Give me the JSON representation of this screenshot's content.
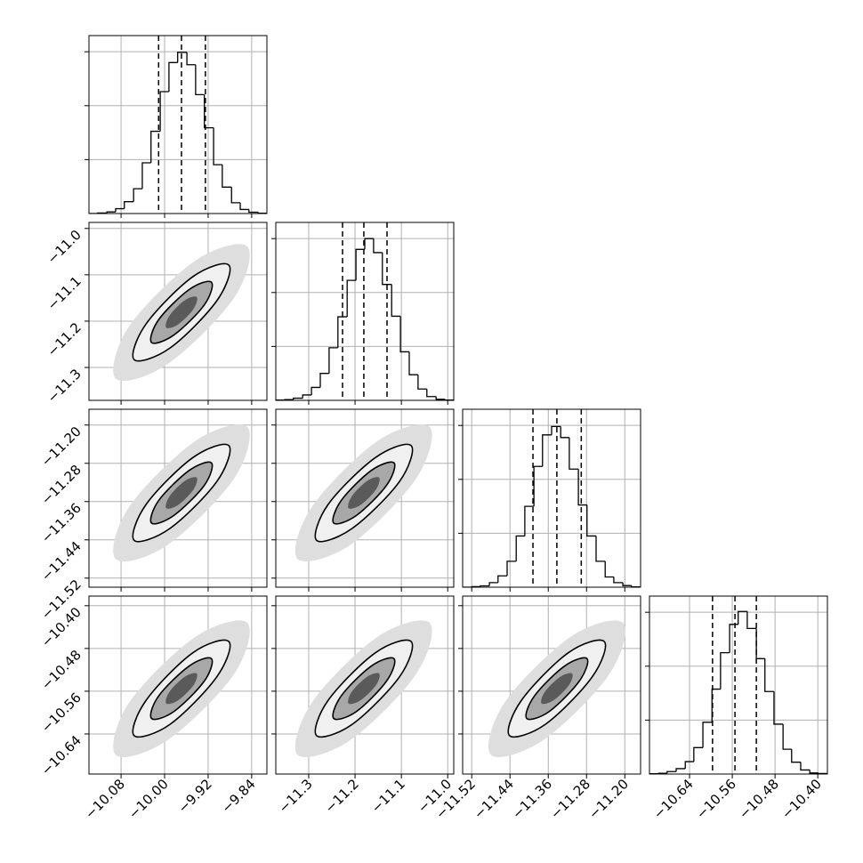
{
  "chart_data": {
    "type": "corner",
    "grid": true,
    "color": "#000000",
    "contour_colors": [
      "#dedede",
      "#f0f0f0",
      "#a8a8a8",
      "#5a5a5a"
    ],
    "parameters": [
      {
        "lim": [
          -10.139,
          -9.812
        ],
        "ticks": [
          {
            "value": -10.08,
            "label": "−10.08"
          },
          {
            "value": -10.0,
            "label": "−10.00"
          },
          {
            "value": -9.92,
            "label": "−9.92"
          },
          {
            "value": -9.84,
            "label": "−9.84"
          }
        ],
        "quantiles": [
          -10.011,
          -9.969,
          -9.925
        ],
        "hist": {
          "bins": [
            -10.139,
            -10.123,
            -10.106,
            -10.09,
            -10.074,
            -10.057,
            -10.041,
            -10.025,
            -10.008,
            -9.992,
            -9.976,
            -9.959,
            -9.943,
            -9.927,
            -9.91,
            -9.894,
            -9.877,
            -9.861,
            -9.845,
            -9.828,
            -9.812
          ],
          "counts": [
            0,
            2,
            6,
            18,
            44,
            92,
            188,
            305,
            452,
            560,
            598,
            552,
            441,
            318,
            181,
            98,
            40,
            15,
            5,
            1
          ],
          "ylim": [
            0,
            660
          ],
          "yticks": [
            200,
            400,
            600
          ]
        }
      },
      {
        "lim": [
          -11.371,
          -10.987
        ],
        "ticks": [
          {
            "value": -11.3,
            "label": "−11.3"
          },
          {
            "value": -11.2,
            "label": "−11.2"
          },
          {
            "value": -11.1,
            "label": "−11.1"
          },
          {
            "value": -11.0,
            "label": "−11.0"
          }
        ],
        "quantiles": [
          -11.227,
          -11.181,
          -11.131
        ],
        "hist": {
          "bins": [
            -11.371,
            -11.352,
            -11.333,
            -11.313,
            -11.294,
            -11.275,
            -11.256,
            -11.237,
            -11.217,
            -11.198,
            -11.179,
            -11.16,
            -11.141,
            -11.121,
            -11.102,
            -11.083,
            -11.064,
            -11.045,
            -11.025,
            -11.006,
            -10.987
          ],
          "counts": [
            1,
            3,
            8,
            20,
            48,
            100,
            195,
            310,
            445,
            560,
            600,
            548,
            430,
            312,
            180,
            95,
            42,
            14,
            4,
            1
          ],
          "ylim": [
            0,
            660
          ],
          "yticks": [
            200,
            400,
            600
          ]
        }
      },
      {
        "lim": [
          -11.539,
          -11.167
        ],
        "ticks": [
          {
            "value": -11.52,
            "label": "−11.52"
          },
          {
            "value": -11.44,
            "label": "−11.44"
          },
          {
            "value": -11.36,
            "label": "−11.36"
          },
          {
            "value": -11.28,
            "label": "−11.28"
          },
          {
            "value": -11.2,
            "label": "−11.20"
          }
        ],
        "quantiles": [
          -11.392,
          -11.342,
          -11.291
        ],
        "hist": {
          "bins": [
            -11.539,
            -11.52,
            -11.502,
            -11.483,
            -11.465,
            -11.446,
            -11.427,
            -11.409,
            -11.39,
            -11.372,
            -11.353,
            -11.334,
            -11.316,
            -11.297,
            -11.279,
            -11.26,
            -11.241,
            -11.223,
            -11.204,
            -11.186,
            -11.167
          ],
          "counts": [
            0,
            2,
            5,
            17,
            42,
            96,
            190,
            300,
            448,
            565,
            596,
            555,
            438,
            305,
            190,
            96,
            38,
            17,
            6,
            1
          ],
          "ylim": [
            0,
            660
          ],
          "yticks": [
            200,
            400,
            600
          ]
        }
      },
      {
        "lim": [
          -10.715,
          -10.382
        ],
        "ticks": [
          {
            "value": -10.64,
            "label": "−10.64"
          },
          {
            "value": -10.56,
            "label": "−10.56"
          },
          {
            "value": -10.48,
            "label": "−10.48"
          },
          {
            "value": -10.4,
            "label": "−10.40"
          }
        ],
        "quantiles": [
          -10.597,
          -10.555,
          -10.515
        ],
        "hist": {
          "bins": [
            -10.715,
            -10.698,
            -10.682,
            -10.665,
            -10.648,
            -10.632,
            -10.615,
            -10.598,
            -10.582,
            -10.565,
            -10.549,
            -10.532,
            -10.515,
            -10.499,
            -10.482,
            -10.465,
            -10.449,
            -10.432,
            -10.415,
            -10.399,
            -10.382
          ],
          "counts": [
            1,
            3,
            9,
            20,
            46,
            98,
            192,
            315,
            450,
            555,
            603,
            540,
            428,
            306,
            185,
            92,
            44,
            15,
            4,
            2
          ],
          "ylim": [
            0,
            660
          ],
          "yticks": [
            200,
            400,
            600
          ]
        }
      }
    ],
    "pairs": [
      {
        "x_param": 0,
        "y_param": 1,
        "contours": [
          {
            "x": [
              -9.848,
              -9.873,
              -9.995,
              -10.09,
              -10.065,
              -9.943
            ],
            "y": [
              -11.039,
              -11.151,
              -11.293,
              -11.324,
              -11.211,
              -11.069
            ]
          },
          {
            "x": [
              -9.882,
              -9.904,
              -9.99,
              -10.056,
              -10.034,
              -9.948
            ],
            "y": [
              -11.079,
              -11.156,
              -11.258,
              -11.283,
              -11.206,
              -11.104
            ]
          },
          {
            "x": [
              -9.914,
              -9.927,
              -9.983,
              -10.024,
              -10.011,
              -9.955
            ],
            "y": [
              -11.116,
              -11.165,
              -11.23,
              -11.246,
              -11.197,
              -11.132
            ]
          },
          {
            "x": [
              -9.941,
              -9.947,
              -9.975,
              -9.997,
              -9.991,
              -9.963
            ],
            "y": [
              -11.148,
              -11.174,
              -11.207,
              -11.214,
              -11.188,
              -11.155
            ]
          }
        ]
      },
      {
        "x_param": 0,
        "y_param": 2,
        "contours": [
          {
            "x": [
              -9.848,
              -9.873,
              -9.995,
              -10.09,
              -10.065,
              -9.943
            ],
            "y": [
              -11.204,
              -11.313,
              -11.451,
              -11.48,
              -11.371,
              -11.233
            ]
          },
          {
            "x": [
              -9.882,
              -9.904,
              -9.99,
              -10.056,
              -10.034,
              -9.948
            ],
            "y": [
              -11.243,
              -11.318,
              -11.416,
              -11.441,
              -11.366,
              -11.268
            ]
          },
          {
            "x": [
              -9.914,
              -9.927,
              -9.983,
              -10.024,
              -10.011,
              -9.955
            ],
            "y": [
              -11.279,
              -11.326,
              -11.389,
              -11.405,
              -11.358,
              -11.295
            ]
          },
          {
            "x": [
              -9.941,
              -9.947,
              -9.975,
              -9.997,
              -9.991,
              -9.963
            ],
            "y": [
              -11.31,
              -11.335,
              -11.367,
              -11.374,
              -11.349,
              -11.317
            ]
          }
        ]
      },
      {
        "x_param": 1,
        "y_param": 2,
        "contours": [
          {
            "x": [
              -11.039,
              -11.069,
              -11.211,
              -11.324,
              -11.293,
              -11.151
            ],
            "y": [
              -11.204,
              -11.313,
              -11.451,
              -11.48,
              -11.371,
              -11.233
            ]
          },
          {
            "x": [
              -11.079,
              -11.104,
              -11.206,
              -11.283,
              -11.258,
              -11.156
            ],
            "y": [
              -11.243,
              -11.318,
              -11.416,
              -11.441,
              -11.366,
              -11.268
            ]
          },
          {
            "x": [
              -11.116,
              -11.132,
              -11.197,
              -11.246,
              -11.23,
              -11.165
            ],
            "y": [
              -11.279,
              -11.326,
              -11.389,
              -11.405,
              -11.358,
              -11.295
            ]
          },
          {
            "x": [
              -11.148,
              -11.155,
              -11.188,
              -11.214,
              -11.207,
              -11.174
            ],
            "y": [
              -11.31,
              -11.335,
              -11.367,
              -11.374,
              -11.349,
              -11.317
            ]
          }
        ]
      },
      {
        "x_param": 0,
        "y_param": 3,
        "contours": [
          {
            "x": [
              -9.848,
              -9.873,
              -9.995,
              -10.09,
              -10.065,
              -9.943
            ],
            "y": [
              -10.432,
              -10.529,
              -10.652,
              -10.679,
              -10.581,
              -10.458
            ]
          },
          {
            "x": [
              -9.882,
              -9.904,
              -9.99,
              -10.056,
              -10.034,
              -9.948
            ],
            "y": [
              -10.467,
              -10.533,
              -10.622,
              -10.643,
              -10.577,
              -10.488
            ]
          },
          {
            "x": [
              -9.914,
              -9.927,
              -9.983,
              -10.024,
              -10.011,
              -9.955
            ],
            "y": [
              -10.499,
              -10.541,
              -10.598,
              -10.611,
              -10.569,
              -10.513
            ]
          },
          {
            "x": [
              -9.941,
              -9.947,
              -9.975,
              -9.997,
              -9.991,
              -9.963
            ],
            "y": [
              -10.527,
              -10.549,
              -10.577,
              -10.583,
              -10.561,
              -10.533
            ]
          }
        ]
      },
      {
        "x_param": 1,
        "y_param": 3,
        "contours": [
          {
            "x": [
              -11.039,
              -11.069,
              -11.211,
              -11.324,
              -11.293,
              -11.151
            ],
            "y": [
              -10.432,
              -10.529,
              -10.652,
              -10.679,
              -10.581,
              -10.458
            ]
          },
          {
            "x": [
              -11.079,
              -11.104,
              -11.206,
              -11.283,
              -11.258,
              -11.156
            ],
            "y": [
              -10.467,
              -10.533,
              -10.622,
              -10.643,
              -10.577,
              -10.488
            ]
          },
          {
            "x": [
              -11.116,
              -11.132,
              -11.197,
              -11.246,
              -11.23,
              -11.165
            ],
            "y": [
              -10.499,
              -10.541,
              -10.598,
              -10.611,
              -10.569,
              -10.513
            ]
          },
          {
            "x": [
              -11.148,
              -11.155,
              -11.188,
              -11.214,
              -11.207,
              -11.174
            ],
            "y": [
              -10.527,
              -10.549,
              -10.577,
              -10.583,
              -10.561,
              -10.533
            ]
          }
        ]
      },
      {
        "x_param": 2,
        "y_param": 3,
        "contours": [
          {
            "x": [
              -11.204,
              -11.233,
              -11.371,
              -11.48,
              -11.451,
              -11.313
            ],
            "y": [
              -10.432,
              -10.529,
              -10.652,
              -10.679,
              -10.581,
              -10.458
            ]
          },
          {
            "x": [
              -11.243,
              -11.268,
              -11.366,
              -11.441,
              -11.416,
              -11.318
            ],
            "y": [
              -10.467,
              -10.533,
              -10.622,
              -10.643,
              -10.577,
              -10.488
            ]
          },
          {
            "x": [
              -11.279,
              -11.295,
              -11.358,
              -11.405,
              -11.389,
              -11.326
            ],
            "y": [
              -10.499,
              -10.541,
              -10.598,
              -10.611,
              -10.569,
              -10.513
            ]
          },
          {
            "x": [
              -11.31,
              -11.317,
              -11.349,
              -11.374,
              -11.367,
              -11.335
            ],
            "y": [
              -10.527,
              -10.549,
              -10.577,
              -10.583,
              -10.561,
              -10.533
            ]
          }
        ]
      }
    ]
  }
}
